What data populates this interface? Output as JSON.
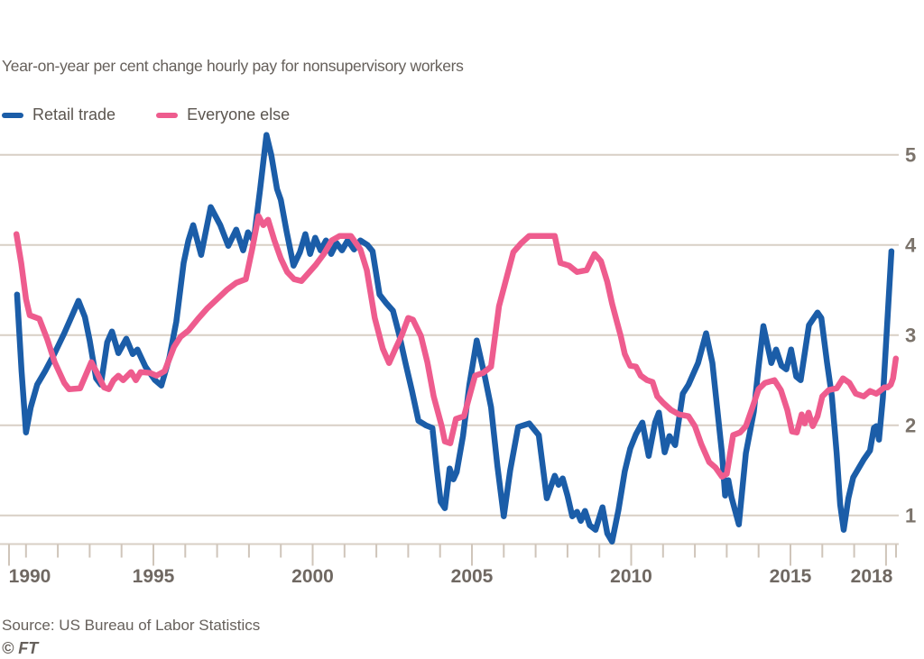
{
  "chart_data": {
    "type": "line",
    "title": "Year-on-year per cent change hourly pay for nonsupervisory workers",
    "source": "Source: US Bureau of Labor Statistics",
    "credit": "© FT",
    "grid": true,
    "legend_position": "top-left",
    "background_color": "#ffffff",
    "gridline_color": "#d8cfc5",
    "tick_color": "#cfc5ba",
    "axis_label_color": "#7b736b",
    "text_color": "#66605b",
    "x_axis": {
      "tick_years": [
        1990,
        1991,
        1992,
        1993,
        1994,
        1995,
        1996,
        1997,
        1998,
        1999,
        2000,
        2001,
        2002,
        2003,
        2004,
        2005,
        2006,
        2007,
        2008,
        2009,
        2010,
        2011,
        2012,
        2013,
        2014,
        2015,
        2016,
        2017,
        2018,
        2019
      ],
      "labeled_years": [
        1990,
        1995,
        2000,
        2005,
        2010,
        2015,
        2018
      ],
      "range": [
        1989.8,
        2019.2
      ]
    },
    "y_axis": {
      "ticks": [
        1,
        2,
        3,
        4,
        5
      ],
      "range": [
        0.6,
        5.4
      ],
      "side": "right"
    },
    "series": [
      {
        "name": "Retail trade",
        "color": "#1b5da8",
        "points": [
          [
            1990.72,
            3.45
          ],
          [
            1990.86,
            2.6
          ],
          [
            1991.0,
            1.92
          ],
          [
            1991.15,
            2.2
          ],
          [
            1991.35,
            2.45
          ],
          [
            1991.6,
            2.6
          ],
          [
            1991.9,
            2.8
          ],
          [
            1992.2,
            3.02
          ],
          [
            1992.45,
            3.22
          ],
          [
            1992.65,
            3.38
          ],
          [
            1992.85,
            3.2
          ],
          [
            1993.0,
            2.94
          ],
          [
            1993.2,
            2.52
          ],
          [
            1993.35,
            2.45
          ],
          [
            1993.55,
            2.92
          ],
          [
            1993.7,
            3.04
          ],
          [
            1993.9,
            2.8
          ],
          [
            1994.15,
            2.96
          ],
          [
            1994.35,
            2.79
          ],
          [
            1994.5,
            2.84
          ],
          [
            1994.75,
            2.65
          ],
          [
            1995.05,
            2.5
          ],
          [
            1995.25,
            2.44
          ],
          [
            1995.5,
            2.75
          ],
          [
            1995.72,
            3.15
          ],
          [
            1995.95,
            3.8
          ],
          [
            1996.1,
            4.05
          ],
          [
            1996.25,
            4.22
          ],
          [
            1996.5,
            3.89
          ],
          [
            1996.8,
            4.42
          ],
          [
            1997.1,
            4.22
          ],
          [
            1997.35,
            3.99
          ],
          [
            1997.6,
            4.17
          ],
          [
            1997.82,
            3.94
          ],
          [
            1997.97,
            4.14
          ],
          [
            1998.15,
            4.05
          ],
          [
            1998.35,
            4.62
          ],
          [
            1998.55,
            5.22
          ],
          [
            1998.7,
            5.0
          ],
          [
            1998.88,
            4.62
          ],
          [
            1999.0,
            4.5
          ],
          [
            1999.18,
            4.15
          ],
          [
            1999.4,
            3.77
          ],
          [
            1999.6,
            3.92
          ],
          [
            1999.77,
            4.12
          ],
          [
            1999.92,
            3.9
          ],
          [
            2000.08,
            4.08
          ],
          [
            2000.25,
            3.94
          ],
          [
            2000.42,
            4.05
          ],
          [
            2000.58,
            3.9
          ],
          [
            2000.75,
            4.02
          ],
          [
            2000.92,
            3.94
          ],
          [
            2001.1,
            4.05
          ],
          [
            2001.3,
            3.95
          ],
          [
            2001.5,
            4.05
          ],
          [
            2001.72,
            4.0
          ],
          [
            2001.88,
            3.93
          ],
          [
            2002.1,
            3.45
          ],
          [
            2002.32,
            3.35
          ],
          [
            2002.52,
            3.27
          ],
          [
            2002.72,
            3.0
          ],
          [
            2002.92,
            2.68
          ],
          [
            2003.12,
            2.38
          ],
          [
            2003.32,
            2.05
          ],
          [
            2003.55,
            2.0
          ],
          [
            2003.76,
            1.97
          ],
          [
            2003.9,
            1.5
          ],
          [
            2004.02,
            1.15
          ],
          [
            2004.15,
            1.08
          ],
          [
            2004.3,
            1.52
          ],
          [
            2004.42,
            1.4
          ],
          [
            2004.52,
            1.48
          ],
          [
            2004.72,
            1.88
          ],
          [
            2004.92,
            2.45
          ],
          [
            2005.15,
            2.94
          ],
          [
            2005.4,
            2.55
          ],
          [
            2005.6,
            2.2
          ],
          [
            2005.8,
            1.55
          ],
          [
            2006.0,
            0.99
          ],
          [
            2006.2,
            1.5
          ],
          [
            2006.45,
            1.98
          ],
          [
            2006.8,
            2.02
          ],
          [
            2007.1,
            1.89
          ],
          [
            2007.35,
            1.19
          ],
          [
            2007.6,
            1.44
          ],
          [
            2007.72,
            1.34
          ],
          [
            2007.85,
            1.41
          ],
          [
            2008.0,
            1.22
          ],
          [
            2008.15,
            0.99
          ],
          [
            2008.3,
            1.04
          ],
          [
            2008.42,
            0.94
          ],
          [
            2008.55,
            1.05
          ],
          [
            2008.7,
            0.89
          ],
          [
            2008.88,
            0.84
          ],
          [
            2009.1,
            1.09
          ],
          [
            2009.25,
            0.8
          ],
          [
            2009.4,
            0.71
          ],
          [
            2009.6,
            1.06
          ],
          [
            2009.8,
            1.49
          ],
          [
            2009.97,
            1.74
          ],
          [
            2010.15,
            1.9
          ],
          [
            2010.35,
            2.03
          ],
          [
            2010.55,
            1.66
          ],
          [
            2010.75,
            2.03
          ],
          [
            2010.87,
            2.14
          ],
          [
            2011.05,
            1.7
          ],
          [
            2011.2,
            1.88
          ],
          [
            2011.38,
            1.78
          ],
          [
            2011.62,
            2.35
          ],
          [
            2011.8,
            2.45
          ],
          [
            2012.1,
            2.69
          ],
          [
            2012.35,
            3.02
          ],
          [
            2012.55,
            2.69
          ],
          [
            2012.7,
            2.19
          ],
          [
            2012.85,
            1.69
          ],
          [
            2012.95,
            1.22
          ],
          [
            2013.05,
            1.39
          ],
          [
            2013.15,
            1.2
          ],
          [
            2013.38,
            0.9
          ],
          [
            2013.6,
            1.69
          ],
          [
            2013.85,
            2.15
          ],
          [
            2014.0,
            2.65
          ],
          [
            2014.15,
            3.1
          ],
          [
            2014.4,
            2.69
          ],
          [
            2014.55,
            2.84
          ],
          [
            2014.72,
            2.66
          ],
          [
            2014.87,
            2.62
          ],
          [
            2015.02,
            2.84
          ],
          [
            2015.18,
            2.54
          ],
          [
            2015.32,
            2.5
          ],
          [
            2015.58,
            3.11
          ],
          [
            2015.85,
            3.25
          ],
          [
            2015.97,
            3.19
          ],
          [
            2016.15,
            2.69
          ],
          [
            2016.3,
            2.32
          ],
          [
            2016.45,
            1.69
          ],
          [
            2016.56,
            1.12
          ],
          [
            2016.67,
            0.84
          ],
          [
            2016.82,
            1.19
          ],
          [
            2016.97,
            1.42
          ],
          [
            2017.12,
            1.51
          ],
          [
            2017.3,
            1.62
          ],
          [
            2017.5,
            1.72
          ],
          [
            2017.62,
            1.97
          ],
          [
            2017.7,
            1.99
          ],
          [
            2017.78,
            1.84
          ],
          [
            2017.9,
            2.3
          ],
          [
            2018.0,
            2.9
          ],
          [
            2018.1,
            3.5
          ],
          [
            2018.17,
            3.93
          ]
        ]
      },
      {
        "name": "Everyone else",
        "color": "#ee5c8e",
        "points": [
          [
            1990.7,
            4.12
          ],
          [
            1990.85,
            3.8
          ],
          [
            1991.0,
            3.4
          ],
          [
            1991.12,
            3.22
          ],
          [
            1991.42,
            3.18
          ],
          [
            1991.67,
            2.95
          ],
          [
            1991.9,
            2.7
          ],
          [
            1992.2,
            2.47
          ],
          [
            1992.35,
            2.4
          ],
          [
            1992.7,
            2.41
          ],
          [
            1993.05,
            2.7
          ],
          [
            1993.2,
            2.6
          ],
          [
            1993.45,
            2.42
          ],
          [
            1993.6,
            2.4
          ],
          [
            1993.75,
            2.5
          ],
          [
            1993.9,
            2.55
          ],
          [
            1994.05,
            2.5
          ],
          [
            1994.3,
            2.59
          ],
          [
            1994.45,
            2.5
          ],
          [
            1994.6,
            2.59
          ],
          [
            1994.9,
            2.58
          ],
          [
            1995.1,
            2.55
          ],
          [
            1995.35,
            2.6
          ],
          [
            1995.65,
            2.87
          ],
          [
            1995.85,
            2.98
          ],
          [
            1996.1,
            3.05
          ],
          [
            1996.4,
            3.18
          ],
          [
            1996.7,
            3.3
          ],
          [
            1997.0,
            3.4
          ],
          [
            1997.3,
            3.5
          ],
          [
            1997.6,
            3.58
          ],
          [
            1997.9,
            3.62
          ],
          [
            1998.1,
            3.95
          ],
          [
            1998.3,
            4.32
          ],
          [
            1998.45,
            4.22
          ],
          [
            1998.6,
            4.28
          ],
          [
            1998.8,
            4.05
          ],
          [
            1999.0,
            3.85
          ],
          [
            1999.2,
            3.7
          ],
          [
            1999.42,
            3.62
          ],
          [
            1999.65,
            3.6
          ],
          [
            1999.85,
            3.68
          ],
          [
            2000.1,
            3.78
          ],
          [
            2000.35,
            3.9
          ],
          [
            2000.6,
            4.05
          ],
          [
            2000.85,
            4.1
          ],
          [
            2001.2,
            4.1
          ],
          [
            2001.5,
            3.95
          ],
          [
            2001.7,
            3.72
          ],
          [
            2001.95,
            3.19
          ],
          [
            2002.2,
            2.85
          ],
          [
            2002.4,
            2.69
          ],
          [
            2002.6,
            2.85
          ],
          [
            2002.8,
            3.0
          ],
          [
            2003.0,
            3.19
          ],
          [
            2003.15,
            3.17
          ],
          [
            2003.4,
            2.99
          ],
          [
            2003.6,
            2.7
          ],
          [
            2003.8,
            2.32
          ],
          [
            2004.05,
            1.99
          ],
          [
            2004.15,
            1.82
          ],
          [
            2004.32,
            1.8
          ],
          [
            2004.5,
            2.07
          ],
          [
            2004.75,
            2.1
          ],
          [
            2005.1,
            2.55
          ],
          [
            2005.35,
            2.58
          ],
          [
            2005.6,
            2.65
          ],
          [
            2005.85,
            3.32
          ],
          [
            2006.3,
            3.92
          ],
          [
            2006.55,
            4.02
          ],
          [
            2006.8,
            4.1
          ],
          [
            2007.6,
            4.1
          ],
          [
            2007.78,
            3.8
          ],
          [
            2008.05,
            3.77
          ],
          [
            2008.3,
            3.7
          ],
          [
            2008.6,
            3.72
          ],
          [
            2008.85,
            3.9
          ],
          [
            2009.05,
            3.82
          ],
          [
            2009.25,
            3.59
          ],
          [
            2009.4,
            3.35
          ],
          [
            2009.55,
            3.15
          ],
          [
            2009.67,
            2.99
          ],
          [
            2009.8,
            2.79
          ],
          [
            2009.97,
            2.66
          ],
          [
            2010.15,
            2.65
          ],
          [
            2010.3,
            2.55
          ],
          [
            2010.5,
            2.5
          ],
          [
            2010.67,
            2.48
          ],
          [
            2010.82,
            2.32
          ],
          [
            2011.0,
            2.25
          ],
          [
            2011.25,
            2.17
          ],
          [
            2011.5,
            2.12
          ],
          [
            2011.8,
            2.1
          ],
          [
            2012.0,
            1.99
          ],
          [
            2012.2,
            1.79
          ],
          [
            2012.45,
            1.59
          ],
          [
            2012.65,
            1.53
          ],
          [
            2012.85,
            1.43
          ],
          [
            2013.0,
            1.46
          ],
          [
            2013.2,
            1.89
          ],
          [
            2013.42,
            1.92
          ],
          [
            2013.6,
            1.99
          ],
          [
            2013.8,
            2.19
          ],
          [
            2014.0,
            2.4
          ],
          [
            2014.2,
            2.47
          ],
          [
            2014.5,
            2.5
          ],
          [
            2014.7,
            2.39
          ],
          [
            2014.9,
            2.17
          ],
          [
            2015.05,
            1.93
          ],
          [
            2015.2,
            1.92
          ],
          [
            2015.35,
            2.12
          ],
          [
            2015.45,
            2.02
          ],
          [
            2015.57,
            2.14
          ],
          [
            2015.7,
            1.99
          ],
          [
            2015.85,
            2.1
          ],
          [
            2016.0,
            2.32
          ],
          [
            2016.2,
            2.39
          ],
          [
            2016.45,
            2.41
          ],
          [
            2016.65,
            2.52
          ],
          [
            2016.85,
            2.47
          ],
          [
            2017.05,
            2.35
          ],
          [
            2017.3,
            2.32
          ],
          [
            2017.5,
            2.38
          ],
          [
            2017.7,
            2.35
          ],
          [
            2017.95,
            2.42
          ],
          [
            2018.05,
            2.42
          ],
          [
            2018.15,
            2.45
          ],
          [
            2018.22,
            2.52
          ],
          [
            2018.31,
            2.74
          ]
        ]
      }
    ]
  }
}
